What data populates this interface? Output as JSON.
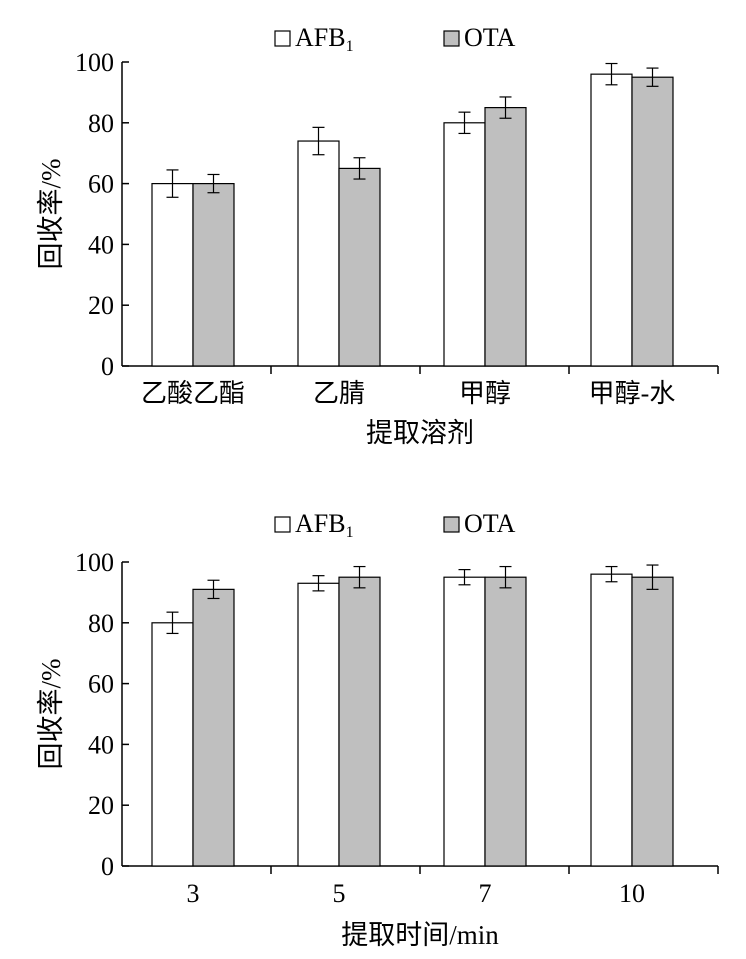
{
  "chart_data": [
    {
      "type": "bar",
      "title": "",
      "xlabel": "提取溶剂",
      "ylabel": "回收率/%",
      "ylim": [
        0,
        100
      ],
      "yticks": [
        "0",
        "20",
        "40",
        "60",
        "80",
        "100"
      ],
      "categories": [
        "乙酸乙酯",
        "乙腈",
        "甲醇",
        "甲醇-水"
      ],
      "legend": {
        "placement": "top-center",
        "items": [
          "AFB",
          "OTA"
        ],
        "subscripts": [
          "1",
          ""
        ]
      },
      "series": [
        {
          "name": "AFB₁",
          "fill": "#ffffff",
          "values": [
            60,
            74,
            80,
            96
          ],
          "errors": [
            4.5,
            4.5,
            3.5,
            3.5
          ]
        },
        {
          "name": "OTA",
          "fill": "#bfbfbf",
          "values": [
            60,
            65,
            85,
            95
          ],
          "errors": [
            3,
            3.5,
            3.5,
            3
          ]
        }
      ],
      "grid": false
    },
    {
      "type": "bar",
      "title": "",
      "xlabel": "提取时间/min",
      "ylabel": "回收率/%",
      "ylim": [
        0,
        100
      ],
      "yticks": [
        "0",
        "20",
        "40",
        "60",
        "80",
        "100"
      ],
      "categories": [
        "3",
        "5",
        "7",
        "10"
      ],
      "legend": {
        "placement": "top-center",
        "items": [
          "AFB",
          "OTA"
        ],
        "subscripts": [
          "1",
          ""
        ]
      },
      "series": [
        {
          "name": "AFB₁",
          "fill": "#ffffff",
          "values": [
            80,
            93,
            95,
            96
          ],
          "errors": [
            3.5,
            2.5,
            2.5,
            2.5
          ]
        },
        {
          "name": "OTA",
          "fill": "#bfbfbf",
          "values": [
            91,
            95,
            95,
            95
          ],
          "errors": [
            3,
            3.5,
            3.5,
            4
          ]
        }
      ],
      "grid": false
    }
  ]
}
